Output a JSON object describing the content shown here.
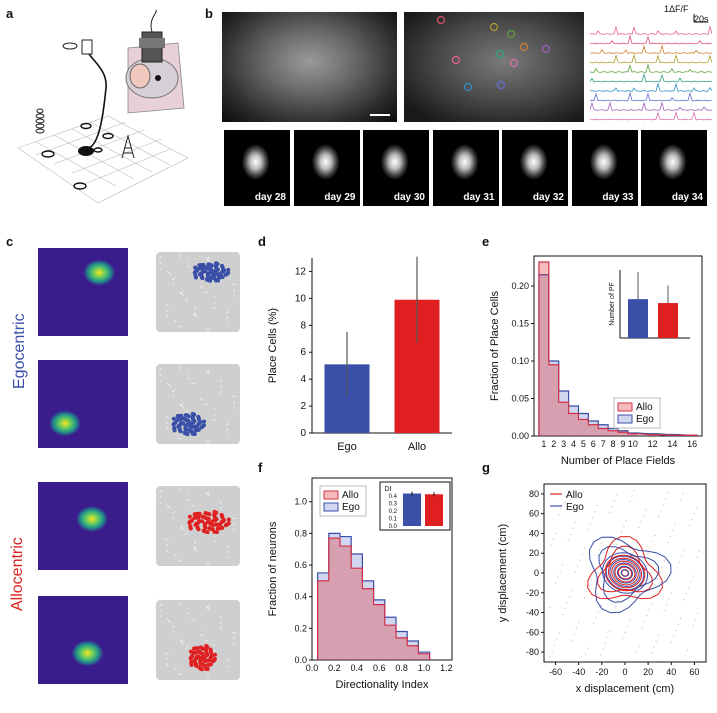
{
  "panel_labels": {
    "a": "a",
    "b": "b",
    "c": "c",
    "d": "d",
    "e": "e",
    "f": "f",
    "g": "g"
  },
  "panel_b": {
    "scale_f": "1ΔF/F",
    "scale_t": "20s",
    "days": [
      "day 28",
      "day 29",
      "day 30",
      "day 31",
      "day 32",
      "day 33",
      "day 34"
    ],
    "trace_colors": [
      "#e8609a",
      "#e05070",
      "#d08030",
      "#b0a030",
      "#60a040",
      "#30a080",
      "#3090c0",
      "#6070d0",
      "#a060c0",
      "#e070b0"
    ]
  },
  "panel_c": {
    "ego_label": "Egocentric",
    "allo_label": "Allocentric",
    "ego_color": "#3a4fa8",
    "allo_color": "#e02020"
  },
  "chart_data": [
    {
      "id": "d",
      "type": "bar",
      "categories": [
        "Ego",
        "Allo"
      ],
      "values": [
        5.1,
        9.9
      ],
      "errors": [
        2.4,
        3.2
      ],
      "colors": [
        "#3a4fa8",
        "#e02020"
      ],
      "ylabel": "Place Cells (%)",
      "ylim": [
        0,
        13
      ],
      "yticks": [
        "0",
        "2",
        "4",
        "6",
        "8",
        "10",
        "12"
      ]
    },
    {
      "id": "e",
      "type": "bar",
      "xlabel": "Number of Place Fields",
      "ylabel": "Fraction of Place Cells",
      "xticks": [
        "1",
        "2",
        "3",
        "4",
        "5",
        "6",
        "7",
        "8",
        "9",
        "10",
        "12",
        "14",
        "16"
      ],
      "yticks": [
        "0.00",
        "0.05",
        "0.10",
        "0.15",
        "0.20"
      ],
      "ylim": [
        0,
        0.24
      ],
      "series": [
        {
          "name": "Allo",
          "values": [
            0.232,
            0.095,
            0.045,
            0.03,
            0.022,
            0.015,
            0.01,
            0.007,
            0.005,
            0.003,
            0.002,
            0.001,
            0.001
          ]
        },
        {
          "name": "Ego",
          "values": [
            0.215,
            0.1,
            0.06,
            0.04,
            0.03,
            0.02,
            0.015,
            0.01,
            0.007,
            0.004,
            0.003,
            0.002,
            0.001
          ]
        }
      ],
      "legend": [
        "Allo",
        "Ego"
      ],
      "inset": {
        "ylabel": "Number of PF",
        "values": [
          2.0,
          1.8
        ],
        "errors": [
          1.4,
          0.9
        ],
        "colors": [
          "#3a4fa8",
          "#e02020"
        ]
      }
    },
    {
      "id": "f",
      "type": "bar",
      "xlabel": "Directionality Index",
      "ylabel": "Fraction of neurons",
      "xticks": [
        "0.0",
        "0.2",
        "0.4",
        "0.6",
        "0.8",
        "1.0",
        "1.2"
      ],
      "yticks": [
        "0.0",
        "0.2",
        "0.4",
        "0.6",
        "0.8",
        "1.0"
      ],
      "ylim": [
        0,
        1.15
      ],
      "bin_width": 0.1,
      "series": [
        {
          "name": "Allo",
          "values": [
            0.5,
            0.77,
            0.72,
            0.58,
            0.45,
            0.35,
            0.22,
            0.14,
            0.09,
            0.04
          ]
        },
        {
          "name": "Ego",
          "values": [
            0.55,
            0.8,
            0.78,
            0.67,
            0.5,
            0.38,
            0.27,
            0.18,
            0.12,
            0.05
          ]
        }
      ],
      "legend": [
        "Allo",
        "Ego"
      ],
      "inset": {
        "title": "DI",
        "yticks": [
          "0.0",
          "0.1",
          "0.2",
          "0.3",
          "0.4"
        ],
        "values": [
          0.43,
          0.42
        ],
        "errors": [
          0.02,
          0.02
        ],
        "colors": [
          "#3a4fa8",
          "#e02020"
        ]
      }
    },
    {
      "id": "g",
      "type": "contour",
      "xlabel": "x displacement (cm)",
      "ylabel": "y displacement (cm)",
      "xticks": [
        "-60",
        "-40",
        "-20",
        "0",
        "20",
        "40",
        "60"
      ],
      "yticks": [
        "-80",
        "-60",
        "-40",
        "-20",
        "0",
        "20",
        "40",
        "60",
        "80"
      ],
      "xlim": [
        -70,
        70
      ],
      "ylim": [
        -90,
        90
      ],
      "legend": [
        "Allo",
        "Ego"
      ],
      "colors": [
        "#e02020",
        "#3a4fa8"
      ]
    }
  ]
}
